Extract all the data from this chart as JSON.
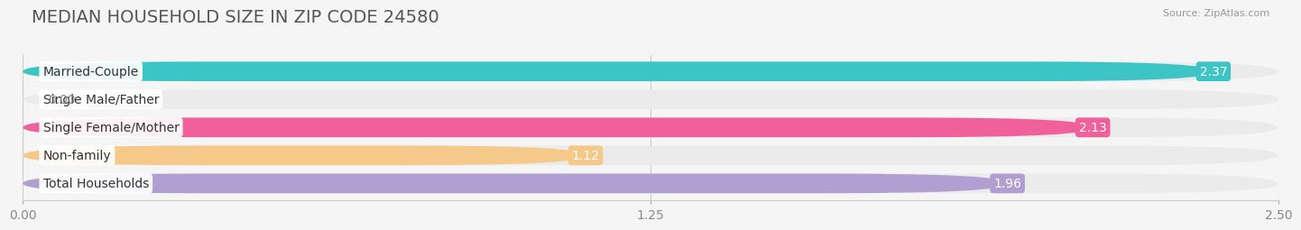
{
  "title": "MEDIAN HOUSEHOLD SIZE IN ZIP CODE 24580",
  "source": "Source: ZipAtlas.com",
  "categories": [
    "Married-Couple",
    "Single Male/Father",
    "Single Female/Mother",
    "Non-family",
    "Total Households"
  ],
  "values": [
    2.37,
    0.0,
    2.13,
    1.12,
    1.96
  ],
  "bar_colors": [
    "#3dc4c4",
    "#a8bfea",
    "#f0609a",
    "#f5c98a",
    "#b09fd0"
  ],
  "bar_bg_colors": [
    "#ebebeb",
    "#ebebeb",
    "#ebebeb",
    "#ebebeb",
    "#ebebeb"
  ],
  "value_colors": [
    "white",
    "#888888",
    "white",
    "white",
    "white"
  ],
  "xlim": [
    0,
    2.5
  ],
  "xticks": [
    0.0,
    1.25,
    2.5
  ],
  "xtick_labels": [
    "0.00",
    "1.25",
    "2.50"
  ],
  "title_fontsize": 14,
  "label_fontsize": 10,
  "value_fontsize": 10,
  "bar_height": 0.7,
  "background_color": "#f5f5f5"
}
